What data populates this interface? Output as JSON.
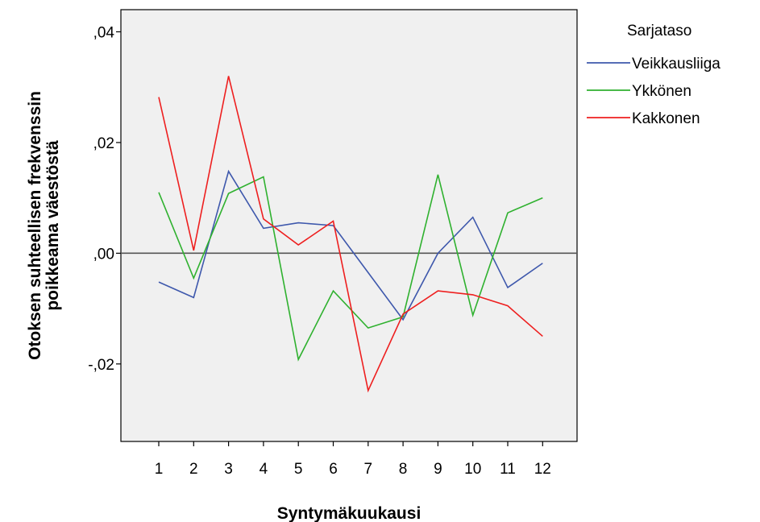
{
  "chart_data": {
    "type": "line",
    "xlabel": "Syntymäkuukausi",
    "ylabel_lines": [
      "Otoksen suhteellisen frekvenssin",
      "poikkeama väestöstä"
    ],
    "x": [
      1,
      2,
      3,
      4,
      5,
      6,
      7,
      8,
      9,
      10,
      11,
      12
    ],
    "x_tick_labels": [
      "1",
      "2",
      "3",
      "4",
      "5",
      "6",
      "7",
      "8",
      "9",
      "10",
      "11",
      "12"
    ],
    "ylim": [
      -0.034,
      0.044
    ],
    "y_ticks": [
      0.04,
      0.02,
      0.0,
      -0.02
    ],
    "y_tick_labels": [
      ",04",
      ",02",
      ",00",
      "-,02"
    ],
    "reference_line_y": 0.0,
    "grid": false,
    "plot_background": "#f0f0f0",
    "legend": {
      "title": "Sarjataso",
      "placement": "right"
    },
    "series": [
      {
        "name": "Veikkausliiga",
        "color": "#3e58ac",
        "values": [
          -0.0052,
          -0.008,
          0.0148,
          0.0045,
          0.0055,
          0.005,
          -0.0035,
          -0.012,
          0.0,
          0.0065,
          -0.0062,
          -0.0018
        ]
      },
      {
        "name": "Ykkönen",
        "color": "#2fb12f",
        "values": [
          0.011,
          -0.0045,
          0.0108,
          0.0138,
          -0.0192,
          -0.0068,
          -0.0135,
          -0.0115,
          0.0142,
          -0.0112,
          0.0073,
          0.01
        ]
      },
      {
        "name": "Kakkonen",
        "color": "#ee1f1f",
        "values": [
          0.0282,
          0.0005,
          0.032,
          0.0062,
          0.0015,
          0.0058,
          -0.0248,
          -0.011,
          -0.0068,
          -0.0075,
          -0.0095,
          -0.015
        ]
      }
    ]
  }
}
